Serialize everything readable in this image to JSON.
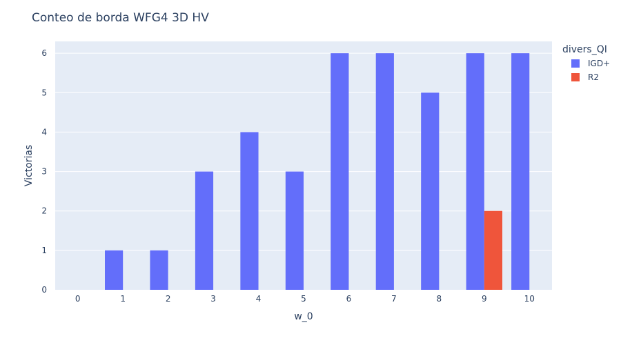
{
  "chart_data": {
    "type": "bar",
    "title": "Conteo de borda WFG4 3D HV",
    "xlabel": "w_0",
    "ylabel": "Victorias",
    "categories": [
      "0",
      "1",
      "2",
      "3",
      "4",
      "5",
      "6",
      "7",
      "8",
      "9",
      "10"
    ],
    "series": [
      {
        "name": "IGD+",
        "color": "#636efa",
        "values": [
          0,
          1,
          1,
          3,
          4,
          3,
          6,
          6,
          5,
          6,
          6
        ]
      },
      {
        "name": "R2",
        "color": "#ef553b",
        "values": [
          0,
          0,
          0,
          0,
          0,
          0,
          0,
          0,
          0,
          2,
          0
        ]
      }
    ],
    "ylim": [
      0,
      6.3
    ],
    "yticks": [
      "0",
      "1",
      "2",
      "3",
      "4",
      "5",
      "6"
    ],
    "grid": true,
    "legend": {
      "title": "divers_QI",
      "placement": "top-right"
    },
    "plot_bgcolor": "#e5ecf6"
  }
}
